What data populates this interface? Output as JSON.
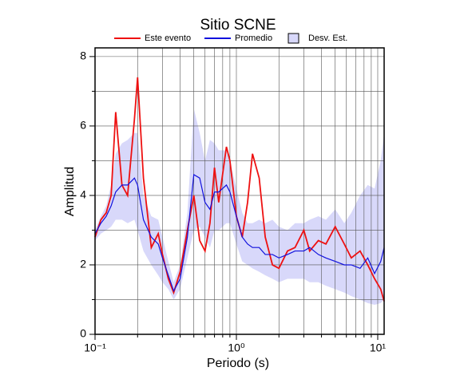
{
  "chart_data": {
    "type": "line",
    "title": "Sitio SCNE",
    "xlabel": "Periodo (s)",
    "ylabel": "Amplitud",
    "log_x": true,
    "grid": true,
    "xlim": [
      0.1,
      11.1
    ],
    "ylim": [
      0,
      8.25
    ],
    "xticks": [
      {
        "value": 0.1,
        "label": "10⁻¹"
      },
      {
        "value": 1,
        "label": "10⁰"
      },
      {
        "value": 10,
        "label": "10¹"
      }
    ],
    "xminor": [
      0.2,
      0.3,
      0.4,
      0.5,
      0.6,
      0.7,
      0.8,
      0.9,
      2,
      3,
      4,
      5,
      6,
      7,
      8,
      9
    ],
    "yticks": [
      0,
      2,
      4,
      6,
      8
    ],
    "yminor": [
      1,
      3,
      5,
      7
    ],
    "x": [
      0.1,
      0.11,
      0.12,
      0.13,
      0.14,
      0.155,
      0.17,
      0.19,
      0.2,
      0.22,
      0.25,
      0.28,
      0.3,
      0.33,
      0.36,
      0.4,
      0.45,
      0.5,
      0.55,
      0.6,
      0.65,
      0.7,
      0.75,
      0.85,
      0.9,
      1.0,
      1.1,
      1.2,
      1.3,
      1.45,
      1.6,
      1.8,
      2.0,
      2.3,
      2.6,
      3.0,
      3.3,
      3.8,
      4.3,
      5.0,
      5.8,
      6.5,
      7.5,
      8.5,
      9.5,
      10.5,
      11.1
    ],
    "band": {
      "name": "Desv. Est.",
      "color": "#d8d8fa",
      "upper": [
        3.0,
        3.4,
        3.7,
        4.3,
        5.2,
        5.5,
        5.6,
        5.8,
        5.8,
        4.0,
        3.4,
        3.3,
        2.8,
        2.1,
        1.5,
        2.0,
        3.5,
        6.5,
        5.8,
        5.0,
        5.6,
        5.5,
        5.3,
        5.3,
        5.0,
        4.2,
        3.5,
        3.2,
        3.2,
        3.3,
        3.2,
        3.3,
        3.1,
        3.0,
        3.2,
        3.2,
        3.3,
        3.4,
        3.3,
        3.6,
        3.2,
        3.5,
        4.0,
        4.3,
        4.2,
        5.0,
        5.8
      ],
      "lower": [
        2.7,
        2.9,
        3.0,
        3.1,
        3.3,
        3.3,
        3.2,
        3.3,
        3.0,
        2.4,
        2.0,
        1.7,
        1.5,
        1.3,
        1.0,
        1.3,
        2.2,
        3.0,
        3.1,
        2.8,
        2.5,
        3.0,
        3.0,
        3.2,
        3.2,
        2.6,
        2.1,
        2.0,
        1.9,
        1.8,
        1.7,
        1.6,
        1.5,
        1.6,
        1.6,
        1.6,
        1.5,
        1.5,
        1.4,
        1.3,
        1.2,
        1.1,
        1.0,
        0.9,
        0.85,
        0.9,
        1.0
      ]
    },
    "series": [
      {
        "name": "Este evento",
        "color": "#ee1111",
        "values": [
          2.8,
          3.3,
          3.5,
          4.0,
          6.4,
          4.3,
          4.0,
          6.2,
          7.4,
          4.5,
          2.5,
          2.9,
          2.3,
          1.6,
          1.2,
          1.8,
          3.0,
          4.0,
          2.7,
          2.4,
          3.2,
          4.8,
          3.8,
          5.4,
          5.0,
          3.4,
          2.8,
          3.8,
          5.2,
          4.5,
          2.8,
          2.0,
          1.9,
          2.4,
          2.5,
          3.0,
          2.4,
          2.7,
          2.6,
          3.1,
          2.6,
          2.2,
          2.4,
          2.0,
          1.6,
          1.3,
          0.95
        ]
      },
      {
        "name": "Promedio",
        "color": "#1111dd",
        "values": [
          2.9,
          3.2,
          3.4,
          3.7,
          4.1,
          4.3,
          4.3,
          4.5,
          4.3,
          3.3,
          2.8,
          2.6,
          2.2,
          1.7,
          1.25,
          1.6,
          2.8,
          4.6,
          4.5,
          3.8,
          3.6,
          4.1,
          4.1,
          4.3,
          4.1,
          3.4,
          2.8,
          2.6,
          2.5,
          2.5,
          2.3,
          2.3,
          2.2,
          2.3,
          2.4,
          2.4,
          2.5,
          2.3,
          2.2,
          2.1,
          2.0,
          2.0,
          1.9,
          2.2,
          1.75,
          2.1,
          2.5
        ]
      }
    ]
  }
}
